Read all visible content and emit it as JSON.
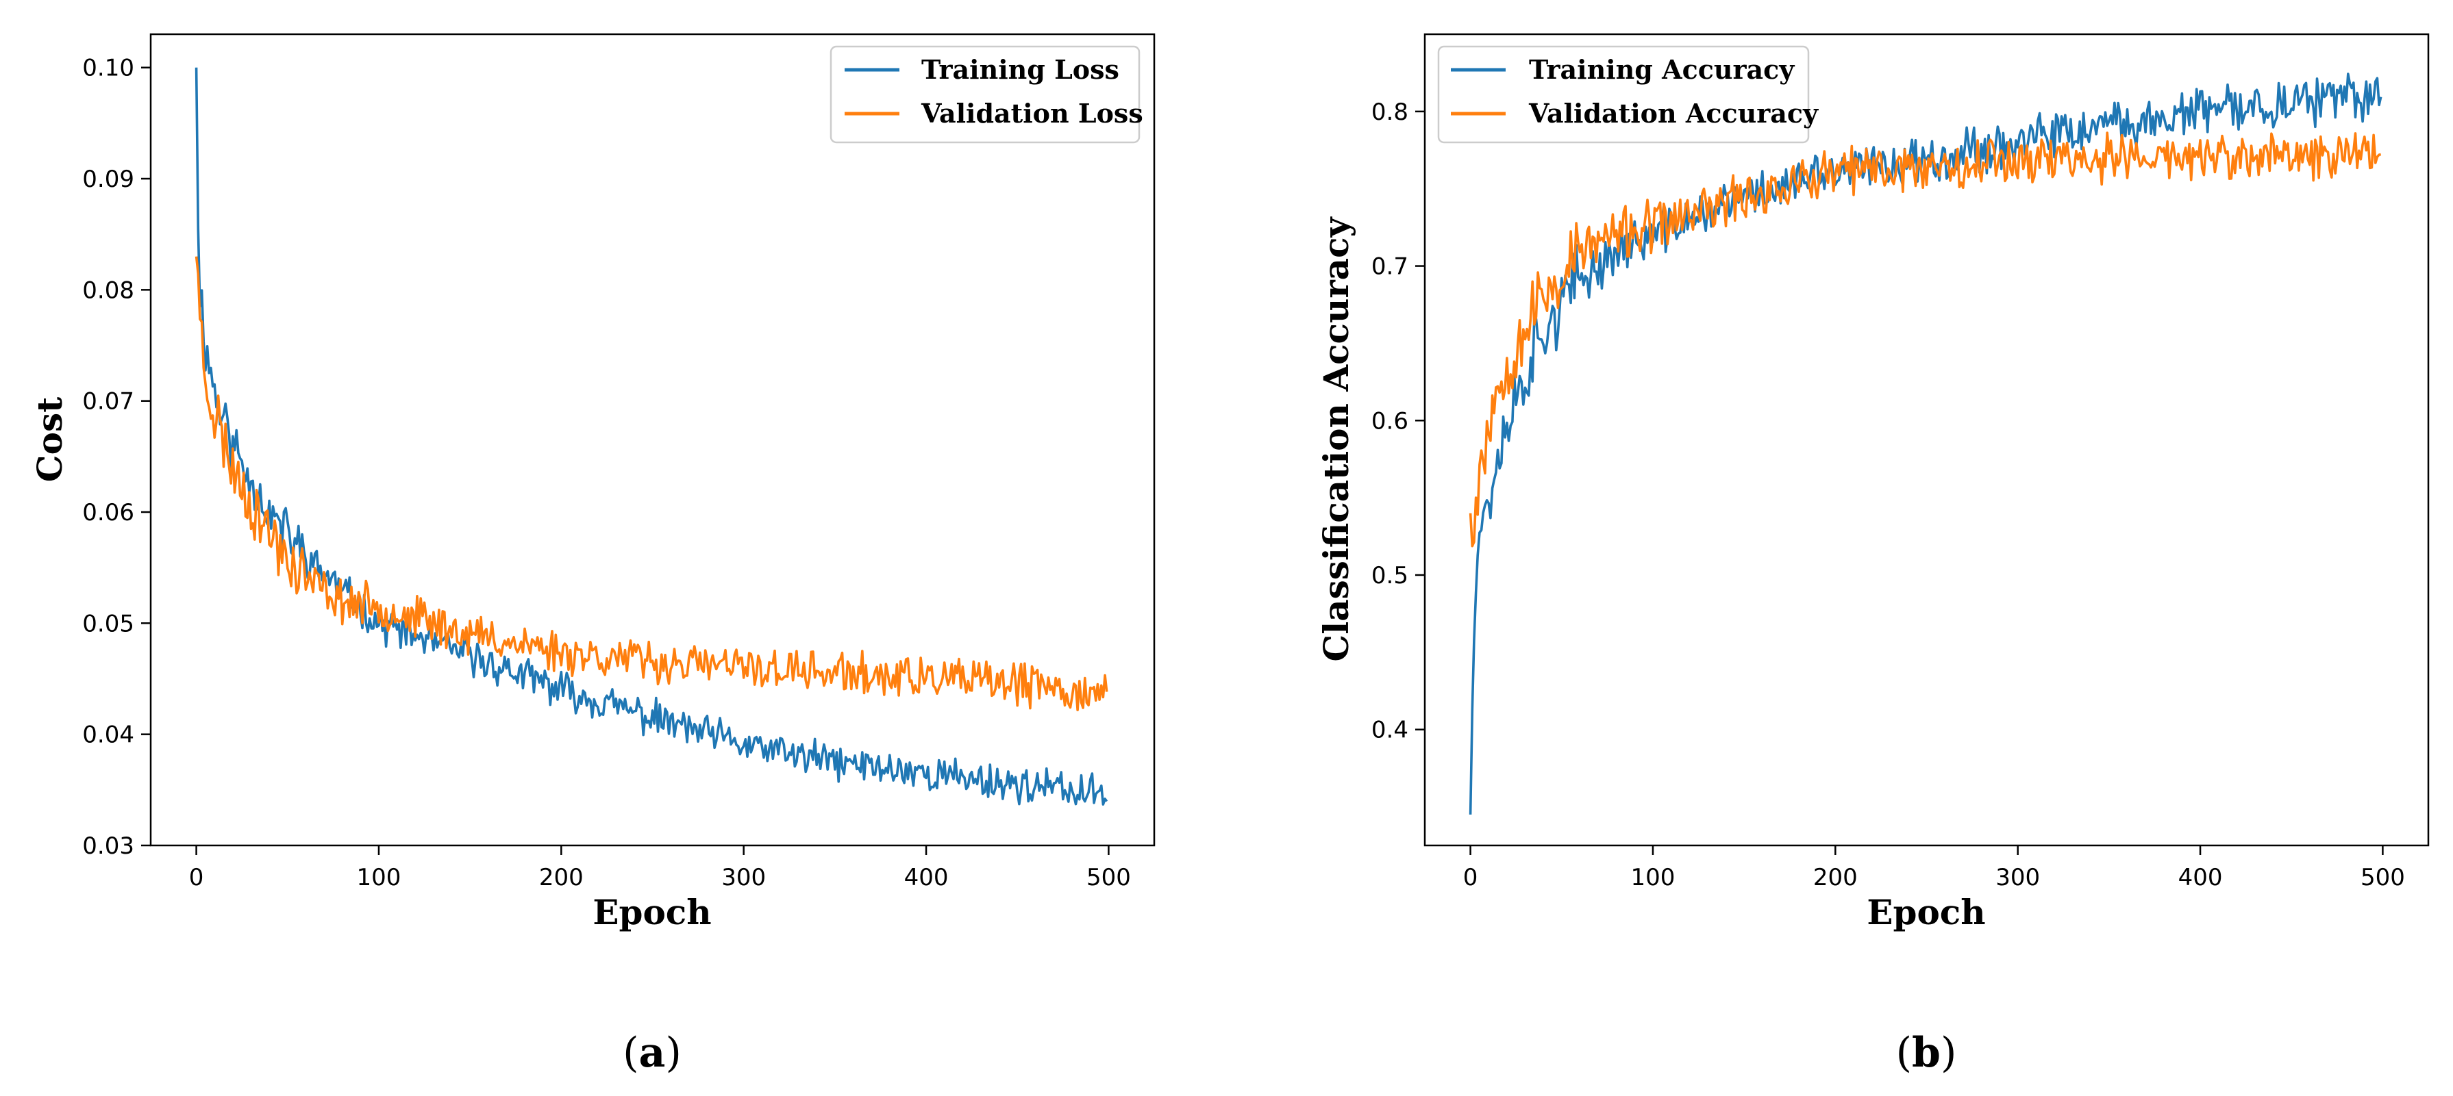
{
  "chart_data": [
    {
      "type": "line",
      "panel": "a",
      "caption_letter": "a",
      "title": "",
      "xlabel": "Epoch",
      "ylabel": "Cost",
      "xlim": [
        -25,
        525
      ],
      "ylim": [
        0.03,
        0.103
      ],
      "xticks": [
        0,
        100,
        200,
        300,
        400,
        500
      ],
      "yticks": [
        0.03,
        0.04,
        0.05,
        0.06,
        0.07,
        0.08,
        0.09,
        0.1
      ],
      "ytick_labels": [
        "0.03",
        "0.04",
        "0.05",
        "0.06",
        "0.07",
        "0.08",
        "0.09",
        "0.10"
      ],
      "grid": false,
      "legend_position": "top-right",
      "series": [
        {
          "name": "Training Loss",
          "color": "#1f77b4",
          "start": 0.1,
          "tail": 0.0345,
          "noise": 0.0013,
          "seed": 11,
          "x": [
            0,
            1,
            2,
            5,
            10,
            20,
            40,
            60,
            80,
            100,
            150,
            200,
            250,
            300,
            350,
            400,
            450,
            499
          ],
          "y": [
            0.1,
            0.087,
            0.08,
            0.075,
            0.071,
            0.066,
            0.06,
            0.056,
            0.053,
            0.05,
            0.047,
            0.044,
            0.0415,
            0.039,
            0.0375,
            0.0365,
            0.0355,
            0.0345
          ]
        },
        {
          "name": "Validation Loss",
          "color": "#ff7f0e",
          "start": 0.083,
          "tail": 0.0435,
          "noise": 0.0015,
          "seed": 23,
          "x": [
            0,
            1,
            2,
            5,
            10,
            20,
            40,
            60,
            80,
            100,
            150,
            200,
            250,
            300,
            350,
            400,
            450,
            499
          ],
          "y": [
            0.082,
            0.083,
            0.077,
            0.072,
            0.069,
            0.064,
            0.058,
            0.054,
            0.052,
            0.0515,
            0.049,
            0.0475,
            0.0465,
            0.046,
            0.0455,
            0.045,
            0.0445,
            0.0435
          ]
        }
      ]
    },
    {
      "type": "line",
      "panel": "b",
      "caption_letter": "b",
      "title": "",
      "xlabel": "Epoch",
      "ylabel": "Classification Accuracy",
      "xlim": [
        -25,
        525
      ],
      "ylim": [
        0.325,
        0.85
      ],
      "xticks": [
        0,
        100,
        200,
        300,
        400,
        500
      ],
      "yticks": [
        0.4,
        0.5,
        0.6,
        0.7,
        0.8
      ],
      "ytick_labels": [
        "0.4",
        "0.5",
        "0.6",
        "0.7",
        "0.8"
      ],
      "grid": false,
      "legend_position": "top-left",
      "series": [
        {
          "name": "Training Accuracy",
          "color": "#1f77b4",
          "start": 0.345,
          "tail": 0.81,
          "noise": 0.012,
          "seed": 37,
          "x": [
            0,
            1,
            2,
            3,
            5,
            10,
            20,
            40,
            60,
            80,
            100,
            150,
            200,
            250,
            300,
            350,
            400,
            450,
            499
          ],
          "y": [
            0.345,
            0.42,
            0.48,
            0.51,
            0.53,
            0.55,
            0.6,
            0.66,
            0.69,
            0.71,
            0.72,
            0.745,
            0.76,
            0.77,
            0.78,
            0.79,
            0.8,
            0.805,
            0.81
          ]
        },
        {
          "name": "Validation Accuracy",
          "color": "#ff7f0e",
          "start": 0.54,
          "tail": 0.775,
          "noise": 0.013,
          "seed": 53,
          "x": [
            0,
            2,
            5,
            10,
            20,
            40,
            60,
            80,
            100,
            150,
            200,
            250,
            300,
            350,
            400,
            450,
            499
          ],
          "y": [
            0.54,
            0.535,
            0.57,
            0.6,
            0.64,
            0.68,
            0.71,
            0.72,
            0.725,
            0.745,
            0.76,
            0.765,
            0.77,
            0.77,
            0.77,
            0.77,
            0.775
          ]
        }
      ]
    }
  ]
}
